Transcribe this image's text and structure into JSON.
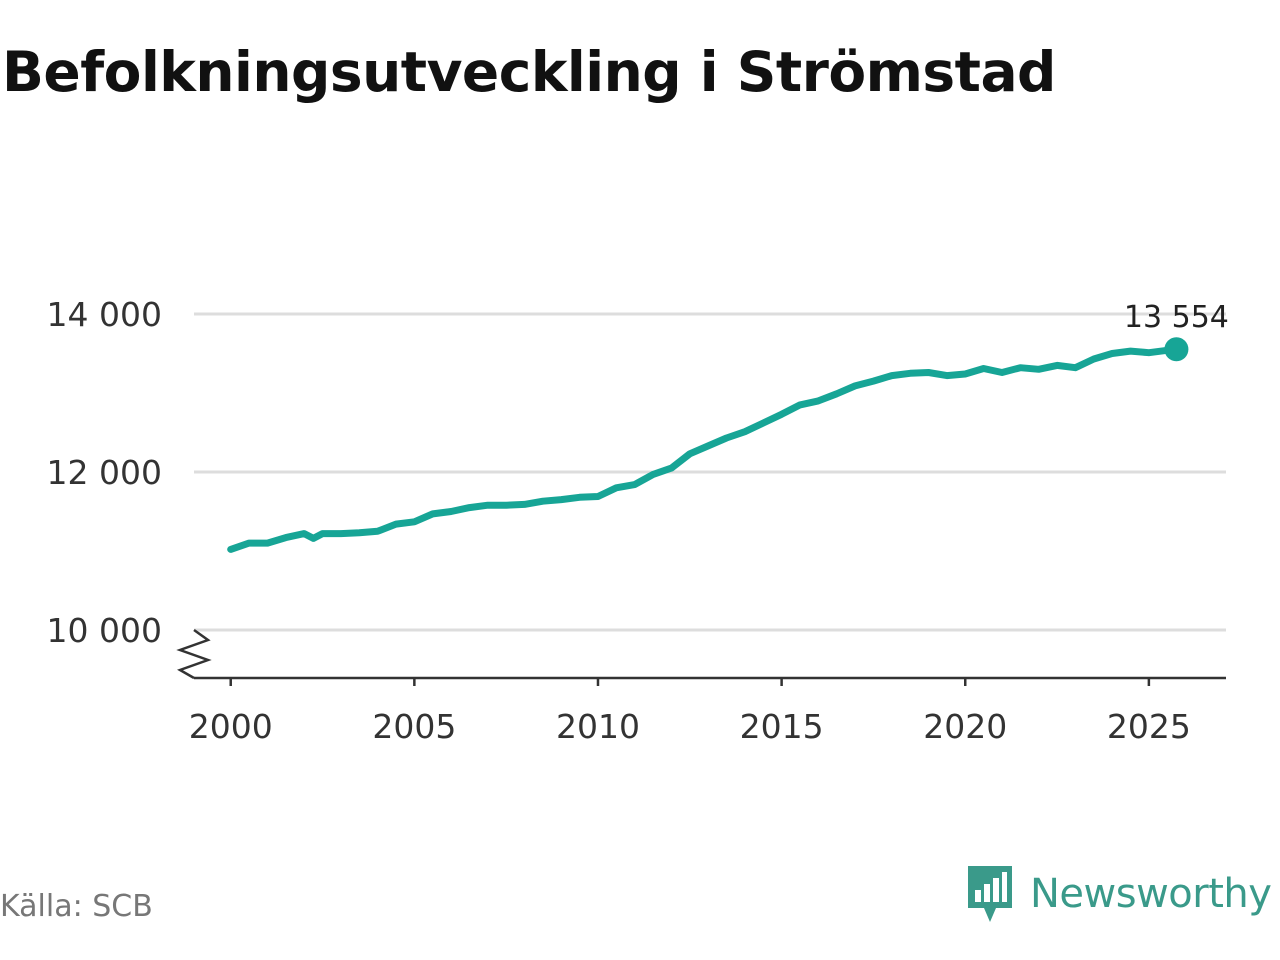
{
  "source": "Källa: SCB",
  "brand": "Newsworthy",
  "colors": {
    "line": "#17a596",
    "grid": "#dddddd",
    "axis": "#333333",
    "brand": "#3a9a8a"
  },
  "chart_data": {
    "type": "line",
    "title": "Befolkningsutveckling i Strömstad",
    "xlabel": "",
    "ylabel": "",
    "xlim": [
      1999,
      2027.1
    ],
    "ylim": [
      9400,
      14400
    ],
    "y_axis_break": true,
    "grid": true,
    "x_ticks": [
      2000,
      2005,
      2010,
      2015,
      2020,
      2025
    ],
    "x_tick_labels": [
      "2000",
      "2005",
      "2010",
      "2015",
      "2020",
      "2025"
    ],
    "y_ticks": [
      10000,
      12000,
      14000
    ],
    "y_tick_labels": [
      "10 000",
      "12 000",
      "14 000"
    ],
    "end_label": "13 554",
    "series": [
      {
        "x": [
          2000.0,
          2000.5,
          2001.0,
          2001.5,
          2002.0,
          2002.25,
          2002.5,
          2003.0,
          2003.5,
          2004.0,
          2004.5,
          2005.0,
          2005.5,
          2006.0,
          2006.5,
          2007.0,
          2007.5,
          2008.0,
          2008.5,
          2009.0,
          2009.5,
          2010.0,
          2010.5,
          2011.0,
          2011.5,
          2012.0,
          2012.5,
          2013.0,
          2013.5,
          2014.0,
          2014.5,
          2015.0,
          2015.5,
          2016.0,
          2016.5,
          2017.0,
          2017.5,
          2018.0,
          2018.5,
          2019.0,
          2019.5,
          2020.0,
          2020.5,
          2021.0,
          2021.5,
          2022.0,
          2022.5,
          2023.0,
          2023.5,
          2024.0,
          2024.5,
          2025.0,
          2025.5,
          2025.75
        ],
        "y": [
          11020,
          11100,
          11100,
          11170,
          11220,
          11160,
          11220,
          11220,
          11230,
          11250,
          11340,
          11370,
          11470,
          11500,
          11550,
          11580,
          11580,
          11590,
          11630,
          11650,
          11680,
          11690,
          11800,
          11840,
          11970,
          12050,
          12230,
          12330,
          12430,
          12510,
          12620,
          12730,
          12850,
          12900,
          12990,
          13090,
          13150,
          13220,
          13250,
          13260,
          13220,
          13240,
          13310,
          13260,
          13320,
          13300,
          13350,
          13320,
          13430,
          13500,
          13530,
          13510,
          13540,
          13554
        ]
      }
    ]
  }
}
